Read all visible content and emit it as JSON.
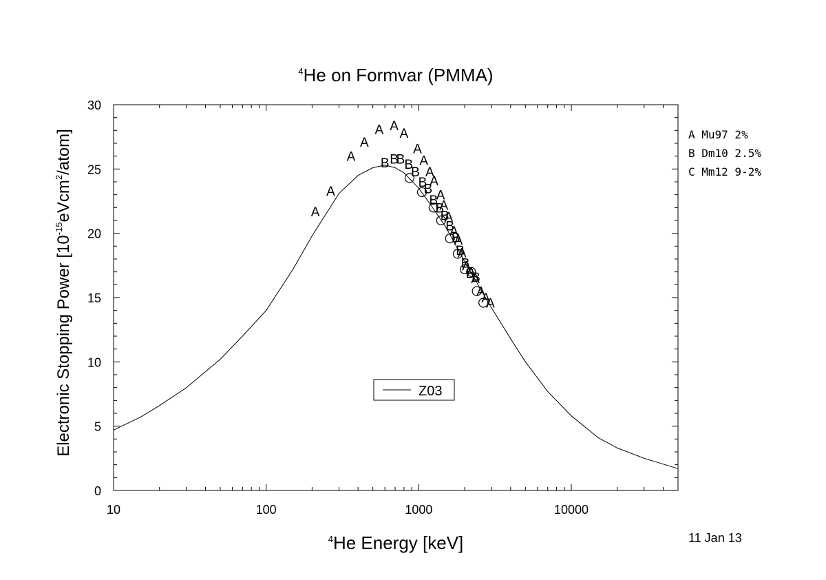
{
  "chart_data": {
    "type": "scatter",
    "title": {
      "sup": "4",
      "text": "He on Formvar (PMMA)"
    },
    "xlabel": {
      "sup": "4",
      "text": "He Energy [keV]"
    },
    "ylabel": {
      "pre": "Electronic Stopping Power [10",
      "sup1": "-15",
      "mid": "eVcm",
      "sup2": "2",
      "post": "/atom]"
    },
    "x_scale": "log",
    "xlim": [
      10,
      50000
    ],
    "ylim": [
      0,
      30
    ],
    "x_ticks": [
      10,
      100,
      1000,
      10000
    ],
    "x_tick_labels": [
      "10",
      "100",
      "1000",
      "10000"
    ],
    "y_ticks": [
      0,
      5,
      10,
      15,
      20,
      25,
      30
    ],
    "y_tick_labels": [
      "0",
      "5",
      "10",
      "15",
      "20",
      "25",
      "30"
    ],
    "grid": false,
    "date_label": "11 Jan 13",
    "legend_data": [
      {
        "marker": "A",
        "text": "A Mu97 2%"
      },
      {
        "marker": "B",
        "text": "B Dm10 2.5%"
      },
      {
        "marker": "C",
        "text": "C Mm12 9-2%"
      }
    ],
    "legend_curve": {
      "text": "Z03"
    },
    "curve": {
      "x": [
        10,
        15,
        20,
        30,
        50,
        70,
        100,
        150,
        200,
        300,
        400,
        500,
        600,
        700,
        800,
        1000,
        1200,
        1500,
        2000,
        2500,
        3000,
        4000,
        5000,
        7000,
        10000,
        15000,
        20000,
        30000,
        50000
      ],
      "y": [
        4.7,
        5.7,
        6.6,
        8.0,
        10.2,
        12.0,
        14.0,
        17.2,
        19.8,
        23.1,
        24.5,
        25.1,
        25.3,
        25.1,
        24.7,
        23.5,
        22.2,
        20.5,
        17.8,
        15.8,
        14.2,
        11.8,
        10.0,
        7.7,
        5.8,
        4.1,
        3.3,
        2.5,
        1.7
      ]
    },
    "series": [
      {
        "marker": "A",
        "x": [
          210,
          265,
          360,
          440,
          550,
          690,
          800,
          980,
          1080,
          1180,
          1260,
          1390,
          1460,
          1570,
          1700,
          1820,
          1920,
          2050,
          2200,
          2350,
          2550,
          2750,
          2950
        ],
        "y": [
          21.7,
          23.3,
          26.0,
          27.1,
          28.1,
          28.4,
          27.8,
          26.6,
          25.7,
          24.8,
          24.1,
          23.0,
          22.2,
          21.3,
          20.2,
          19.5,
          18.5,
          17.5,
          17.0,
          16.5,
          15.5,
          15.0,
          14.6
        ]
      },
      {
        "marker": "B",
        "x": [
          600,
          690,
          760,
          860,
          950,
          1060,
          1150,
          1250,
          1370,
          1480,
          1600,
          1750,
          1870,
          2020,
          2170,
          2370
        ],
        "y": [
          25.5,
          25.8,
          25.8,
          25.4,
          24.8,
          24.0,
          23.5,
          22.6,
          22.0,
          21.4,
          20.6,
          19.7,
          18.7,
          17.7,
          16.9,
          16.6
        ]
      },
      {
        "marker": "C",
        "x": [
          870,
          1050,
          1250,
          1400,
          1600,
          1800,
          2000,
          2200,
          2400,
          2650
        ],
        "y": [
          24.3,
          23.2,
          22.0,
          21.0,
          19.6,
          18.4,
          17.2,
          17.0,
          15.5,
          14.6
        ]
      }
    ]
  }
}
